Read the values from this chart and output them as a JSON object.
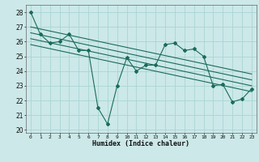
{
  "title": "",
  "xlabel": "Humidex (Indice chaleur)",
  "bg_color": "#cce8e8",
  "line_color": "#1a6b5a",
  "grid_color": "#aad4d4",
  "xlim": [
    -0.5,
    23.5
  ],
  "ylim": [
    19.8,
    28.5
  ],
  "yticks": [
    20,
    21,
    22,
    23,
    24,
    25,
    26,
    27,
    28
  ],
  "xticks": [
    0,
    1,
    2,
    3,
    4,
    5,
    6,
    7,
    8,
    9,
    10,
    11,
    12,
    13,
    14,
    15,
    16,
    17,
    18,
    19,
    20,
    21,
    22,
    23
  ],
  "series1": [
    28.0,
    26.5,
    25.9,
    26.0,
    26.5,
    25.4,
    25.4,
    21.5,
    20.4,
    23.0,
    24.9,
    24.0,
    24.4,
    24.4,
    25.8,
    25.9,
    25.4,
    25.5,
    25.0,
    23.0,
    23.1,
    21.9,
    22.1,
    22.8
  ],
  "trend_lines": [
    [
      0,
      27.0,
      23,
      23.8
    ],
    [
      0,
      26.6,
      23,
      23.4
    ],
    [
      0,
      26.2,
      23,
      23.0
    ],
    [
      0,
      25.8,
      23,
      22.6
    ]
  ]
}
